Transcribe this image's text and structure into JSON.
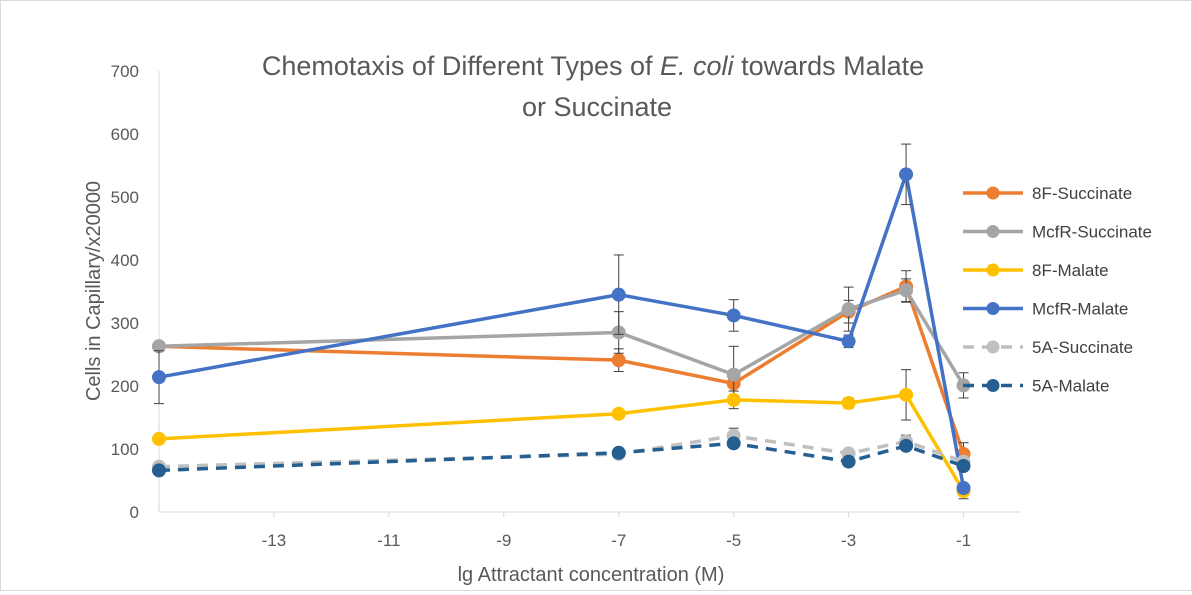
{
  "chart_data": {
    "type": "line",
    "title": {
      "part1": "Chemotaxis of Different Types of ",
      "italic": "E. coli",
      "part2": " towards Malate",
      "line2": "or Succinate"
    },
    "xlabel": "lg Attractant concentration (M)",
    "ylabel": "Cells in Capillary/x20000",
    "xlim": [
      -15,
      0
    ],
    "ylim": [
      0,
      700
    ],
    "xticks": [
      -13,
      -11,
      -9,
      -7,
      -5,
      -3,
      -1
    ],
    "yticks": [
      0,
      100,
      200,
      300,
      400,
      500,
      600,
      700
    ],
    "grid": false,
    "legend_position": "right",
    "series": [
      {
        "name": "8F-Succinate",
        "color": "#ED7D31",
        "dash": false,
        "points": [
          {
            "x": -15,
            "y": 263
          },
          {
            "x": -7,
            "y": 241,
            "err": 18
          },
          {
            "x": -5,
            "y": 204,
            "err": 12
          },
          {
            "x": -3,
            "y": 318,
            "err": 18
          },
          {
            "x": -2,
            "y": 358,
            "err": 25
          },
          {
            "x": -1,
            "y": 92,
            "err": 18
          }
        ]
      },
      {
        "name": "McfR-Succinate",
        "color": "#A5A5A5",
        "dash": false,
        "points": [
          {
            "x": -15,
            "y": 263
          },
          {
            "x": -7,
            "y": 285,
            "err": 33
          },
          {
            "x": -5,
            "y": 218,
            "err": 45
          },
          {
            "x": -3,
            "y": 322,
            "err": 35
          },
          {
            "x": -2,
            "y": 352,
            "err": 18
          },
          {
            "x": -1,
            "y": 201,
            "err": 20
          }
        ]
      },
      {
        "name": "8F-Malate",
        "color": "#FFC000",
        "dash": false,
        "points": [
          {
            "x": -15,
            "y": 116
          },
          {
            "x": -7,
            "y": 156
          },
          {
            "x": -5,
            "y": 178,
            "err": 14
          },
          {
            "x": -3,
            "y": 173,
            "err": 8
          },
          {
            "x": -2,
            "y": 186,
            "err": 40
          },
          {
            "x": -1,
            "y": 33,
            "err": 12
          }
        ]
      },
      {
        "name": "McfR-Malate",
        "color": "#4472C4",
        "dash": false,
        "points": [
          {
            "x": -15,
            "y": 214,
            "err": 42
          },
          {
            "x": -7,
            "y": 345,
            "err": 63
          },
          {
            "x": -5,
            "y": 312,
            "err": 25
          },
          {
            "x": -3,
            "y": 271,
            "err": 10
          },
          {
            "x": -2,
            "y": 536,
            "err": 48
          },
          {
            "x": -1,
            "y": 38
          }
        ]
      },
      {
        "name": "5A-Succinate",
        "color": "#BFBFBF",
        "dash": true,
        "points": [
          {
            "x": -15,
            "y": 72
          },
          {
            "x": -7,
            "y": 92
          },
          {
            "x": -5,
            "y": 121,
            "err": 12
          },
          {
            "x": -3,
            "y": 93
          },
          {
            "x": -2,
            "y": 112,
            "err": 10
          },
          {
            "x": -1,
            "y": 80
          }
        ]
      },
      {
        "name": "5A-Malate",
        "color": "#255E91",
        "dash": true,
        "points": [
          {
            "x": -15,
            "y": 66
          },
          {
            "x": -7,
            "y": 94
          },
          {
            "x": -5,
            "y": 109
          },
          {
            "x": -3,
            "y": 80
          },
          {
            "x": -2,
            "y": 105
          },
          {
            "x": -1,
            "y": 73
          }
        ]
      }
    ]
  }
}
